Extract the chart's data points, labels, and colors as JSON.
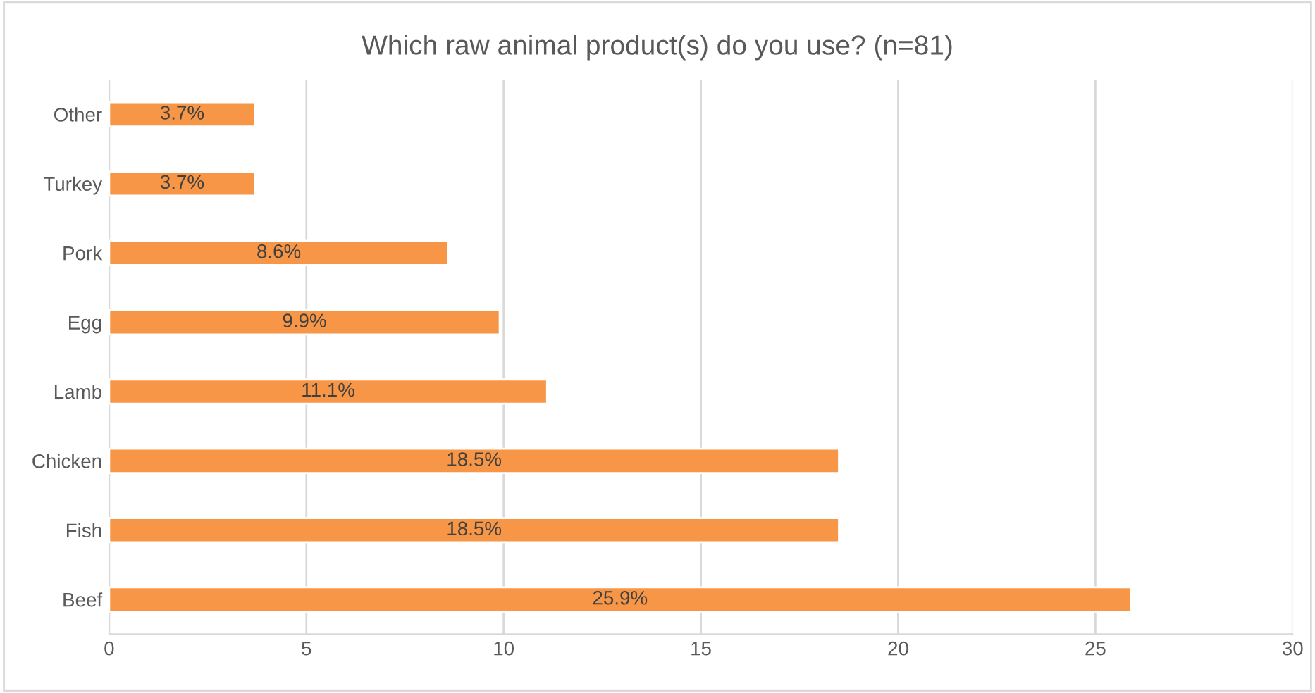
{
  "chart_data": {
    "type": "bar",
    "orientation": "horizontal",
    "title": "Which raw animal product(s) do you use? (n=81)",
    "categories": [
      "Other",
      "Turkey",
      "Pork",
      "Egg",
      "Lamb",
      "Chicken",
      "Fish",
      "Beef"
    ],
    "values": [
      3.7,
      3.7,
      8.6,
      9.9,
      11.1,
      18.5,
      18.5,
      25.9
    ],
    "value_labels": [
      "3.7%",
      "3.7%",
      "8.6%",
      "9.9%",
      "11.1%",
      "18.5%",
      "18.5%",
      "25.9%"
    ],
    "color": "#f79646",
    "xlim": [
      0,
      30
    ],
    "xticks": [
      0,
      5,
      10,
      15,
      20,
      25,
      30
    ],
    "grid": "x",
    "legend": false
  }
}
